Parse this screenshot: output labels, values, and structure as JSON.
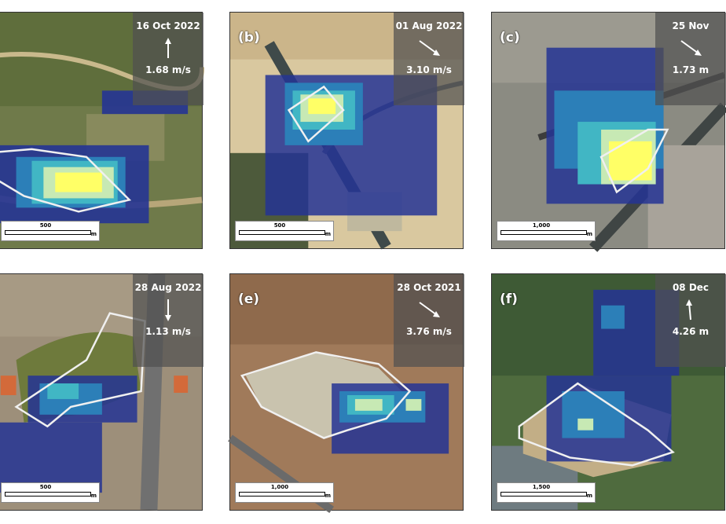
{
  "panels": [
    {
      "id": "a",
      "label": "",
      "date": "16 Oct 2022",
      "wind": "1.68 m/s",
      "arrow": "up-arrow-icon",
      "scale": "500",
      "unit": "m"
    },
    {
      "id": "b",
      "label": "(b)",
      "date": "01 Aug 2022",
      "wind": "3.10 m/s",
      "arrow": "down-right-arrow-icon",
      "scale": "500",
      "unit": "m"
    },
    {
      "id": "c",
      "label": "(c)",
      "date": "25 Nov",
      "wind": "1.73 m",
      "arrow": "down-right-arrow-icon",
      "scale": "1,000",
      "unit": "m"
    },
    {
      "id": "d",
      "label": "",
      "date": "28 Aug 2022",
      "wind": "1.13 m/s",
      "arrow": "down-arrow-icon",
      "scale": "500",
      "unit": "m"
    },
    {
      "id": "e",
      "label": "(e)",
      "date": "28 Oct 2021",
      "wind": "3.76 m/s",
      "arrow": "down-right-arrow-icon",
      "scale": "1,000",
      "unit": "m"
    },
    {
      "id": "f",
      "label": "(f)",
      "date": "08 Dec",
      "wind": "4.26 m",
      "arrow": "up-arrow-icon",
      "scale": "1,500",
      "unit": "m"
    }
  ],
  "colors": {
    "plume_low": "#253494",
    "plume_mid": "#2c7fb8",
    "plume_high": "#41b6c4",
    "plume_peak": "#c7e9b4",
    "plume_max": "#ffff66",
    "outline": "#f0f0f0"
  }
}
